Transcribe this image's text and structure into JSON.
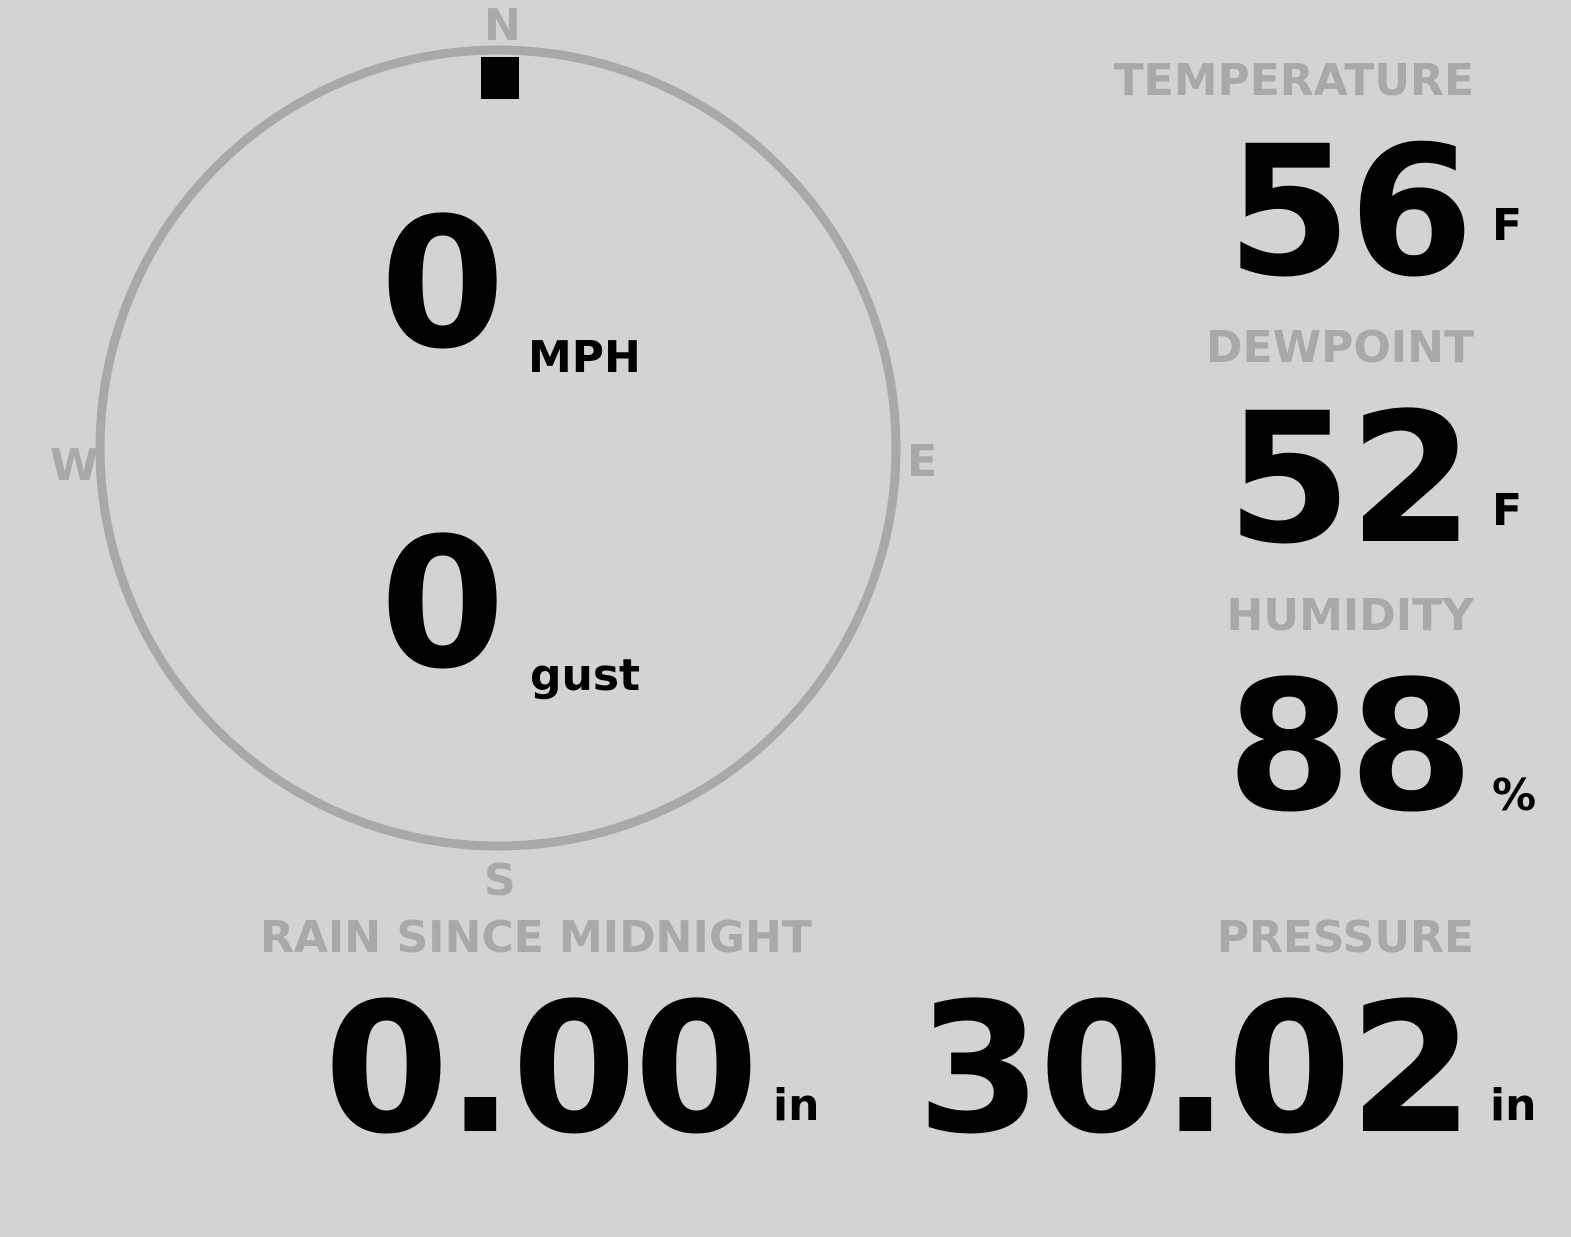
{
  "wind": {
    "speed": "0",
    "speed_unit": "MPH",
    "gust": "0",
    "gust_unit": "gust",
    "direction_degrees": 0,
    "compass": {
      "n": "N",
      "e": "E",
      "s": "S",
      "w": "W"
    }
  },
  "temperature": {
    "label": "TEMPERATURE",
    "value": "56",
    "unit": "F"
  },
  "dewpoint": {
    "label": "DEWPOINT",
    "value": "52",
    "unit": "F"
  },
  "humidity": {
    "label": "HUMIDITY",
    "value": "88",
    "unit": "%"
  },
  "rain": {
    "label": "RAIN SINCE MIDNIGHT",
    "value": "0.00",
    "unit": "in"
  },
  "pressure": {
    "label": "PRESSURE",
    "value": "30.02",
    "unit": "in"
  },
  "colors": {
    "background": "#d3d3d3",
    "muted": "#a9a9a9",
    "text": "#000000"
  }
}
